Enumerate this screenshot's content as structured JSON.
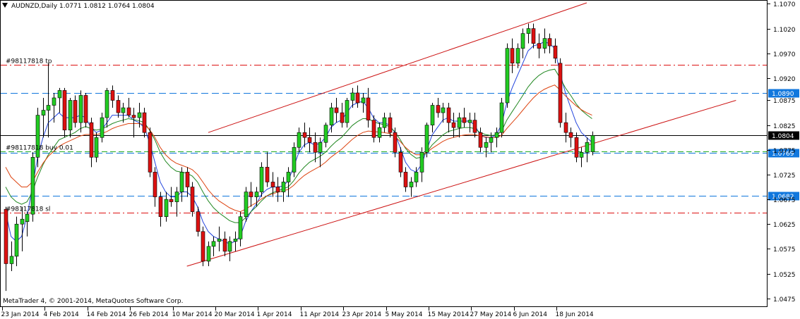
{
  "chart_data": {
    "type": "candlestick",
    "header": {
      "symbol": "AUDNZD",
      "timeframe": "Daily",
      "open": "1.0771",
      "high": "1.0812",
      "low": "1.0764",
      "close": "1.0804",
      "text": "AUDNZD,Daily  1.0771 1.0812 1.0764 1.0804"
    },
    "footer_text": "MetaTrader 4, © 2001-2014, MetaQuotes Software Corp.",
    "ylim": [
      1.0466,
      1.1072
    ],
    "y_ticks": [
      "1.1070",
      "1.1020",
      "1.0970",
      "1.0920",
      "1.0875",
      "1.0825",
      "1.0775",
      "1.0725",
      "1.0675",
      "1.0625",
      "1.0575",
      "1.0525",
      "1.0475"
    ],
    "x_ticks": [
      {
        "label": "23 Jan 2014",
        "i": 0
      },
      {
        "label": "4 Feb 2014",
        "i": 8
      },
      {
        "label": "14 Feb 2014",
        "i": 16
      },
      {
        "label": "26 Feb 2014",
        "i": 24
      },
      {
        "label": "10 Mar 2014",
        "i": 32
      },
      {
        "label": "20 Mar 2014",
        "i": 40
      },
      {
        "label": "1 Apr 2014",
        "i": 48
      },
      {
        "label": "11 Apr 2014",
        "i": 56
      },
      {
        "label": "23 Apr 2014",
        "i": 64
      },
      {
        "label": "5 May 2014",
        "i": 72
      },
      {
        "label": "15 May 2014",
        "i": 80
      },
      {
        "label": "27 May 2014",
        "i": 88
      },
      {
        "label": "6 Jun 2014",
        "i": 96
      },
      {
        "label": "18 Jun 2014",
        "i": 104
      }
    ],
    "candles": [
      [
        1.0655,
        1.066,
        1.049,
        1.0545
      ],
      [
        1.0545,
        1.059,
        1.053,
        1.056
      ],
      [
        1.056,
        1.064,
        1.054,
        1.0625
      ],
      [
        1.0625,
        1.066,
        1.057,
        1.0635
      ],
      [
        1.063,
        1.065,
        1.06,
        1.0645
      ],
      [
        1.0645,
        1.077,
        1.063,
        1.076
      ],
      [
        1.076,
        1.086,
        1.074,
        1.0845
      ],
      [
        1.0845,
        1.088,
        1.08,
        1.0855
      ],
      [
        1.0855,
        1.095,
        1.08,
        1.0865
      ],
      [
        1.0865,
        1.089,
        1.083,
        1.088
      ],
      [
        1.088,
        1.09,
        1.085,
        1.0895
      ],
      [
        1.0895,
        1.09,
        1.08,
        1.0815
      ],
      [
        1.0815,
        1.088,
        1.08,
        1.0875
      ],
      [
        1.0875,
        1.0885,
        1.082,
        1.083
      ],
      [
        1.083,
        1.0895,
        1.081,
        1.0885
      ],
      [
        1.0885,
        1.089,
        1.082,
        1.083
      ],
      [
        1.083,
        1.084,
        1.074,
        1.076
      ],
      [
        1.076,
        1.081,
        1.075,
        1.08
      ],
      [
        1.08,
        1.085,
        1.079,
        1.084
      ],
      [
        1.084,
        1.09,
        1.082,
        1.0895
      ],
      [
        1.0895,
        1.0905,
        1.086,
        1.0875
      ],
      [
        1.0875,
        1.0885,
        1.084,
        1.085
      ],
      [
        1.085,
        1.087,
        1.083,
        1.086
      ],
      [
        1.086,
        1.088,
        1.084,
        1.0845
      ],
      [
        1.0845,
        1.086,
        1.08,
        1.084
      ],
      [
        1.084,
        1.087,
        1.082,
        1.085
      ],
      [
        1.085,
        1.086,
        1.08,
        1.081
      ],
      [
        1.081,
        1.082,
        1.072,
        1.073
      ],
      [
        1.073,
        1.074,
        1.066,
        1.068
      ],
      [
        1.068,
        1.069,
        1.062,
        1.064
      ],
      [
        1.064,
        1.069,
        1.063,
        1.0675
      ],
      [
        1.0675,
        1.07,
        1.066,
        1.067
      ],
      [
        1.067,
        1.07,
        1.064,
        1.069
      ],
      [
        1.069,
        1.074,
        1.067,
        1.073
      ],
      [
        1.073,
        1.074,
        1.068,
        1.07
      ],
      [
        1.07,
        1.071,
        1.064,
        1.065
      ],
      [
        1.065,
        1.066,
        1.06,
        1.061
      ],
      [
        1.061,
        1.062,
        1.054,
        1.055
      ],
      [
        1.055,
        1.059,
        1.054,
        1.058
      ],
      [
        1.058,
        1.06,
        1.056,
        1.059
      ],
      [
        1.059,
        1.062,
        1.057,
        1.0595
      ],
      [
        1.0595,
        1.061,
        1.056,
        1.057
      ],
      [
        1.057,
        1.06,
        1.055,
        1.059
      ],
      [
        1.059,
        1.061,
        1.057,
        1.0595
      ],
      [
        1.0595,
        1.065,
        1.058,
        1.064
      ],
      [
        1.064,
        1.07,
        1.063,
        1.069
      ],
      [
        1.069,
        1.071,
        1.066,
        1.068
      ],
      [
        1.068,
        1.07,
        1.066,
        1.069
      ],
      [
        1.069,
        1.075,
        1.068,
        1.074
      ],
      [
        1.074,
        1.077,
        1.07,
        1.071
      ],
      [
        1.071,
        1.073,
        1.068,
        1.07
      ],
      [
        1.07,
        1.072,
        1.067,
        1.069
      ],
      [
        1.069,
        1.072,
        1.067,
        1.071
      ],
      [
        1.071,
        1.074,
        1.068,
        1.073
      ],
      [
        1.073,
        1.079,
        1.072,
        1.078
      ],
      [
        1.078,
        1.082,
        1.077,
        1.081
      ],
      [
        1.081,
        1.083,
        1.078,
        1.08
      ],
      [
        1.08,
        1.082,
        1.077,
        1.079
      ],
      [
        1.079,
        1.081,
        1.075,
        1.077
      ],
      [
        1.077,
        1.08,
        1.074,
        1.079
      ],
      [
        1.079,
        1.083,
        1.078,
        1.0825
      ],
      [
        1.0825,
        1.087,
        1.081,
        1.086
      ],
      [
        1.086,
        1.088,
        1.083,
        1.085
      ],
      [
        1.085,
        1.087,
        1.082,
        1.083
      ],
      [
        1.083,
        1.088,
        1.082,
        1.0875
      ],
      [
        1.0875,
        1.09,
        1.086,
        1.089
      ],
      [
        1.089,
        1.0905,
        1.086,
        1.087
      ],
      [
        1.087,
        1.089,
        1.085,
        1.088
      ],
      [
        1.088,
        1.09,
        1.082,
        1.0835
      ],
      [
        1.0835,
        1.0845,
        1.079,
        1.08
      ],
      [
        1.08,
        1.083,
        1.079,
        1.082
      ],
      [
        1.082,
        1.085,
        1.081,
        1.084
      ],
      [
        1.084,
        1.085,
        1.08,
        1.081
      ],
      [
        1.081,
        1.082,
        1.076,
        1.077
      ],
      [
        1.077,
        1.078,
        1.072,
        1.073
      ],
      [
        1.073,
        1.074,
        1.069,
        1.07
      ],
      [
        1.07,
        1.072,
        1.068,
        1.071
      ],
      [
        1.071,
        1.074,
        1.07,
        1.073
      ],
      [
        1.073,
        1.078,
        1.071,
        1.077
      ],
      [
        1.077,
        1.083,
        1.076,
        1.0825
      ],
      [
        1.0825,
        1.087,
        1.081,
        1.0865
      ],
      [
        1.0865,
        1.088,
        1.084,
        1.085
      ],
      [
        1.085,
        1.087,
        1.083,
        1.086
      ],
      [
        1.086,
        1.087,
        1.081,
        1.083
      ],
      [
        1.083,
        1.085,
        1.08,
        1.082
      ],
      [
        1.082,
        1.085,
        1.08,
        1.084
      ],
      [
        1.084,
        1.086,
        1.082,
        1.083
      ],
      [
        1.083,
        1.085,
        1.081,
        1.0835
      ],
      [
        1.0835,
        1.085,
        1.08,
        1.081
      ],
      [
        1.081,
        1.082,
        1.077,
        1.078
      ],
      [
        1.078,
        1.08,
        1.076,
        1.079
      ],
      [
        1.079,
        1.081,
        1.077,
        1.08
      ],
      [
        1.08,
        1.082,
        1.078,
        1.081
      ],
      [
        1.081,
        1.088,
        1.08,
        1.087
      ],
      [
        1.087,
        1.099,
        1.086,
        1.098
      ],
      [
        1.098,
        1.1,
        1.093,
        1.095
      ],
      [
        1.095,
        1.099,
        1.094,
        1.098
      ],
      [
        1.098,
        1.102,
        1.096,
        1.101
      ],
      [
        1.101,
        1.103,
        1.099,
        1.102
      ],
      [
        1.102,
        1.103,
        1.098,
        1.099
      ],
      [
        1.099,
        1.101,
        1.096,
        1.098
      ],
      [
        1.098,
        1.102,
        1.097,
        1.1
      ],
      [
        1.1,
        1.101,
        1.097,
        1.0985
      ],
      [
        1.0985,
        1.1,
        1.095,
        1.096
      ],
      [
        1.095,
        1.096,
        1.082,
        1.083
      ],
      [
        1.083,
        1.085,
        1.079,
        1.081
      ],
      [
        1.081,
        1.082,
        1.078,
        1.08
      ],
      [
        1.08,
        1.081,
        1.075,
        1.076
      ],
      [
        1.076,
        1.078,
        1.074,
        1.077
      ],
      [
        1.077,
        1.08,
        1.075,
        1.079
      ],
      [
        1.0771,
        1.0812,
        1.0764,
        1.0804
      ]
    ],
    "moving_averages": [
      {
        "color": "#2244dd",
        "values": [
          1.065,
          1.06,
          1.059,
          1.06,
          1.064,
          1.07,
          1.076,
          1.08,
          1.083,
          1.084,
          1.085,
          1.084,
          1.084,
          1.084,
          1.0845,
          1.084,
          1.082,
          1.081,
          1.0815,
          1.083,
          1.0845,
          1.0845,
          1.0845,
          1.0845,
          1.0835,
          1.083,
          1.082,
          1.079,
          1.075,
          1.071,
          1.069,
          1.068,
          1.068,
          1.069,
          1.069,
          1.068,
          1.066,
          1.063,
          1.061,
          1.06,
          1.0595,
          1.059,
          1.0585,
          1.059,
          1.06,
          1.063,
          1.065,
          1.0665,
          1.0685,
          1.0695,
          1.07,
          1.07,
          1.0702,
          1.0712,
          1.074,
          1.077,
          1.0785,
          1.079,
          1.0785,
          1.0788,
          1.08,
          1.082,
          1.083,
          1.0835,
          1.085,
          1.0865,
          1.087,
          1.0873,
          1.086,
          1.084,
          1.083,
          1.083,
          1.0825,
          1.081,
          1.078,
          1.075,
          1.0735,
          1.073,
          1.0745,
          1.0775,
          1.0805,
          1.082,
          1.0835,
          1.084,
          1.0833,
          1.0833,
          1.0833,
          1.0833,
          1.0825,
          1.0805,
          1.08,
          1.08,
          1.0805,
          1.0825,
          1.087,
          1.09,
          1.0925,
          1.095,
          1.0975,
          1.0985,
          1.0988,
          1.0993,
          1.099,
          1.098,
          1.093,
          1.089,
          1.086,
          1.083,
          1.081,
          1.08,
          1.079
        ]
      },
      {
        "color": "#228822",
        "values": [
          1.07,
          1.068,
          1.067,
          1.0665,
          1.067,
          1.069,
          1.072,
          1.0745,
          1.0765,
          1.078,
          1.0795,
          1.08,
          1.0805,
          1.081,
          1.0818,
          1.0822,
          1.0818,
          1.0815,
          1.0817,
          1.0822,
          1.0828,
          1.0832,
          1.0835,
          1.0838,
          1.0836,
          1.0834,
          1.083,
          1.0815,
          1.0795,
          1.077,
          1.0752,
          1.074,
          1.0732,
          1.073,
          1.0728,
          1.0722,
          1.071,
          1.069,
          1.0672,
          1.0658,
          1.0648,
          1.064,
          1.0632,
          1.0628,
          1.0628,
          1.0638,
          1.065,
          1.066,
          1.0672,
          1.0682,
          1.0688,
          1.0692,
          1.0696,
          1.07,
          1.0712,
          1.0728,
          1.074,
          1.075,
          1.0756,
          1.0762,
          1.077,
          1.0782,
          1.0792,
          1.08,
          1.0812,
          1.0824,
          1.0832,
          1.0838,
          1.0838,
          1.0832,
          1.0828,
          1.0826,
          1.0822,
          1.0812,
          1.0796,
          1.0778,
          1.0766,
          1.0758,
          1.076,
          1.077,
          1.0785,
          1.0795,
          1.0805,
          1.0812,
          1.0815,
          1.0818,
          1.082,
          1.082,
          1.0818,
          1.081,
          1.0806,
          1.0804,
          1.0805,
          1.0812,
          1.0835,
          1.0852,
          1.0868,
          1.0885,
          1.0902,
          1.0915,
          1.0925,
          1.0932,
          1.0936,
          1.0938,
          1.092,
          1.09,
          1.0885,
          1.0868,
          1.0855,
          1.0846,
          1.0838
        ]
      },
      {
        "color": "#dd4411",
        "values": [
          1.074,
          1.072,
          1.071,
          1.07,
          1.07,
          1.071,
          1.073,
          1.0748,
          1.0762,
          1.0772,
          1.0782,
          1.0788,
          1.0793,
          1.0798,
          1.0803,
          1.0806,
          1.0806,
          1.0806,
          1.0808,
          1.0812,
          1.0818,
          1.0822,
          1.0825,
          1.0828,
          1.0828,
          1.0828,
          1.0826,
          1.0816,
          1.08,
          1.078,
          1.0765,
          1.0755,
          1.0748,
          1.0744,
          1.074,
          1.0735,
          1.0725,
          1.071,
          1.0694,
          1.0682,
          1.0672,
          1.0665,
          1.0658,
          1.0653,
          1.065,
          1.0655,
          1.0662,
          1.0668,
          1.0676,
          1.0682,
          1.0686,
          1.0689,
          1.0692,
          1.0695,
          1.0703,
          1.0714,
          1.0723,
          1.073,
          1.0736,
          1.0742,
          1.075,
          1.076,
          1.0768,
          1.0776,
          1.0786,
          1.0796,
          1.0804,
          1.081,
          1.0813,
          1.0812,
          1.0811,
          1.081,
          1.0808,
          1.0802,
          1.0792,
          1.078,
          1.0771,
          1.0765,
          1.0765,
          1.077,
          1.0778,
          1.0785,
          1.0792,
          1.0797,
          1.08,
          1.0803,
          1.0805,
          1.0806,
          1.0806,
          1.0803,
          1.0801,
          1.08,
          1.08,
          1.0804,
          1.0818,
          1.083,
          1.0842,
          1.0855,
          1.0868,
          1.088,
          1.089,
          1.0897,
          1.0902,
          1.0906,
          1.0896,
          1.0884,
          1.0874,
          1.0864,
          1.0856,
          1.085,
          1.0845
        ]
      }
    ],
    "hlines": [
      {
        "price": 1.0947,
        "color": "#dd1111",
        "dash": "10,4,2,4",
        "label": "#98117818 tp"
      },
      {
        "price": 1.089,
        "color": "#1177dd",
        "dash": "10,5",
        "label": "",
        "tag": "1.0890"
      },
      {
        "price": 1.0804,
        "color": "#000000",
        "dash": "",
        "label": "",
        "tag": "1.0804",
        "current": true
      },
      {
        "price": 1.0772,
        "color": "#22aa22",
        "dash": "8,4",
        "label": "#98117818 buy 0.01"
      },
      {
        "price": 1.0769,
        "color": "#1177dd",
        "dash": "10,5",
        "label": "",
        "tag": "1.0769"
      },
      {
        "price": 1.0682,
        "color": "#1177dd",
        "dash": "10,5",
        "label": "",
        "tag": "1.0682"
      },
      {
        "price": 1.0648,
        "color": "#dd1111",
        "dash": "10,4,2,4",
        "label": "#98117818 sl"
      }
    ],
    "trendlines": [
      {
        "color": "#cc1111",
        "from": [
          38,
          1.081
        ],
        "to": [
          109,
          1.1072
        ]
      },
      {
        "color": "#cc1111",
        "from": [
          34,
          1.054
        ],
        "to": [
          137,
          1.0875
        ]
      }
    ]
  }
}
